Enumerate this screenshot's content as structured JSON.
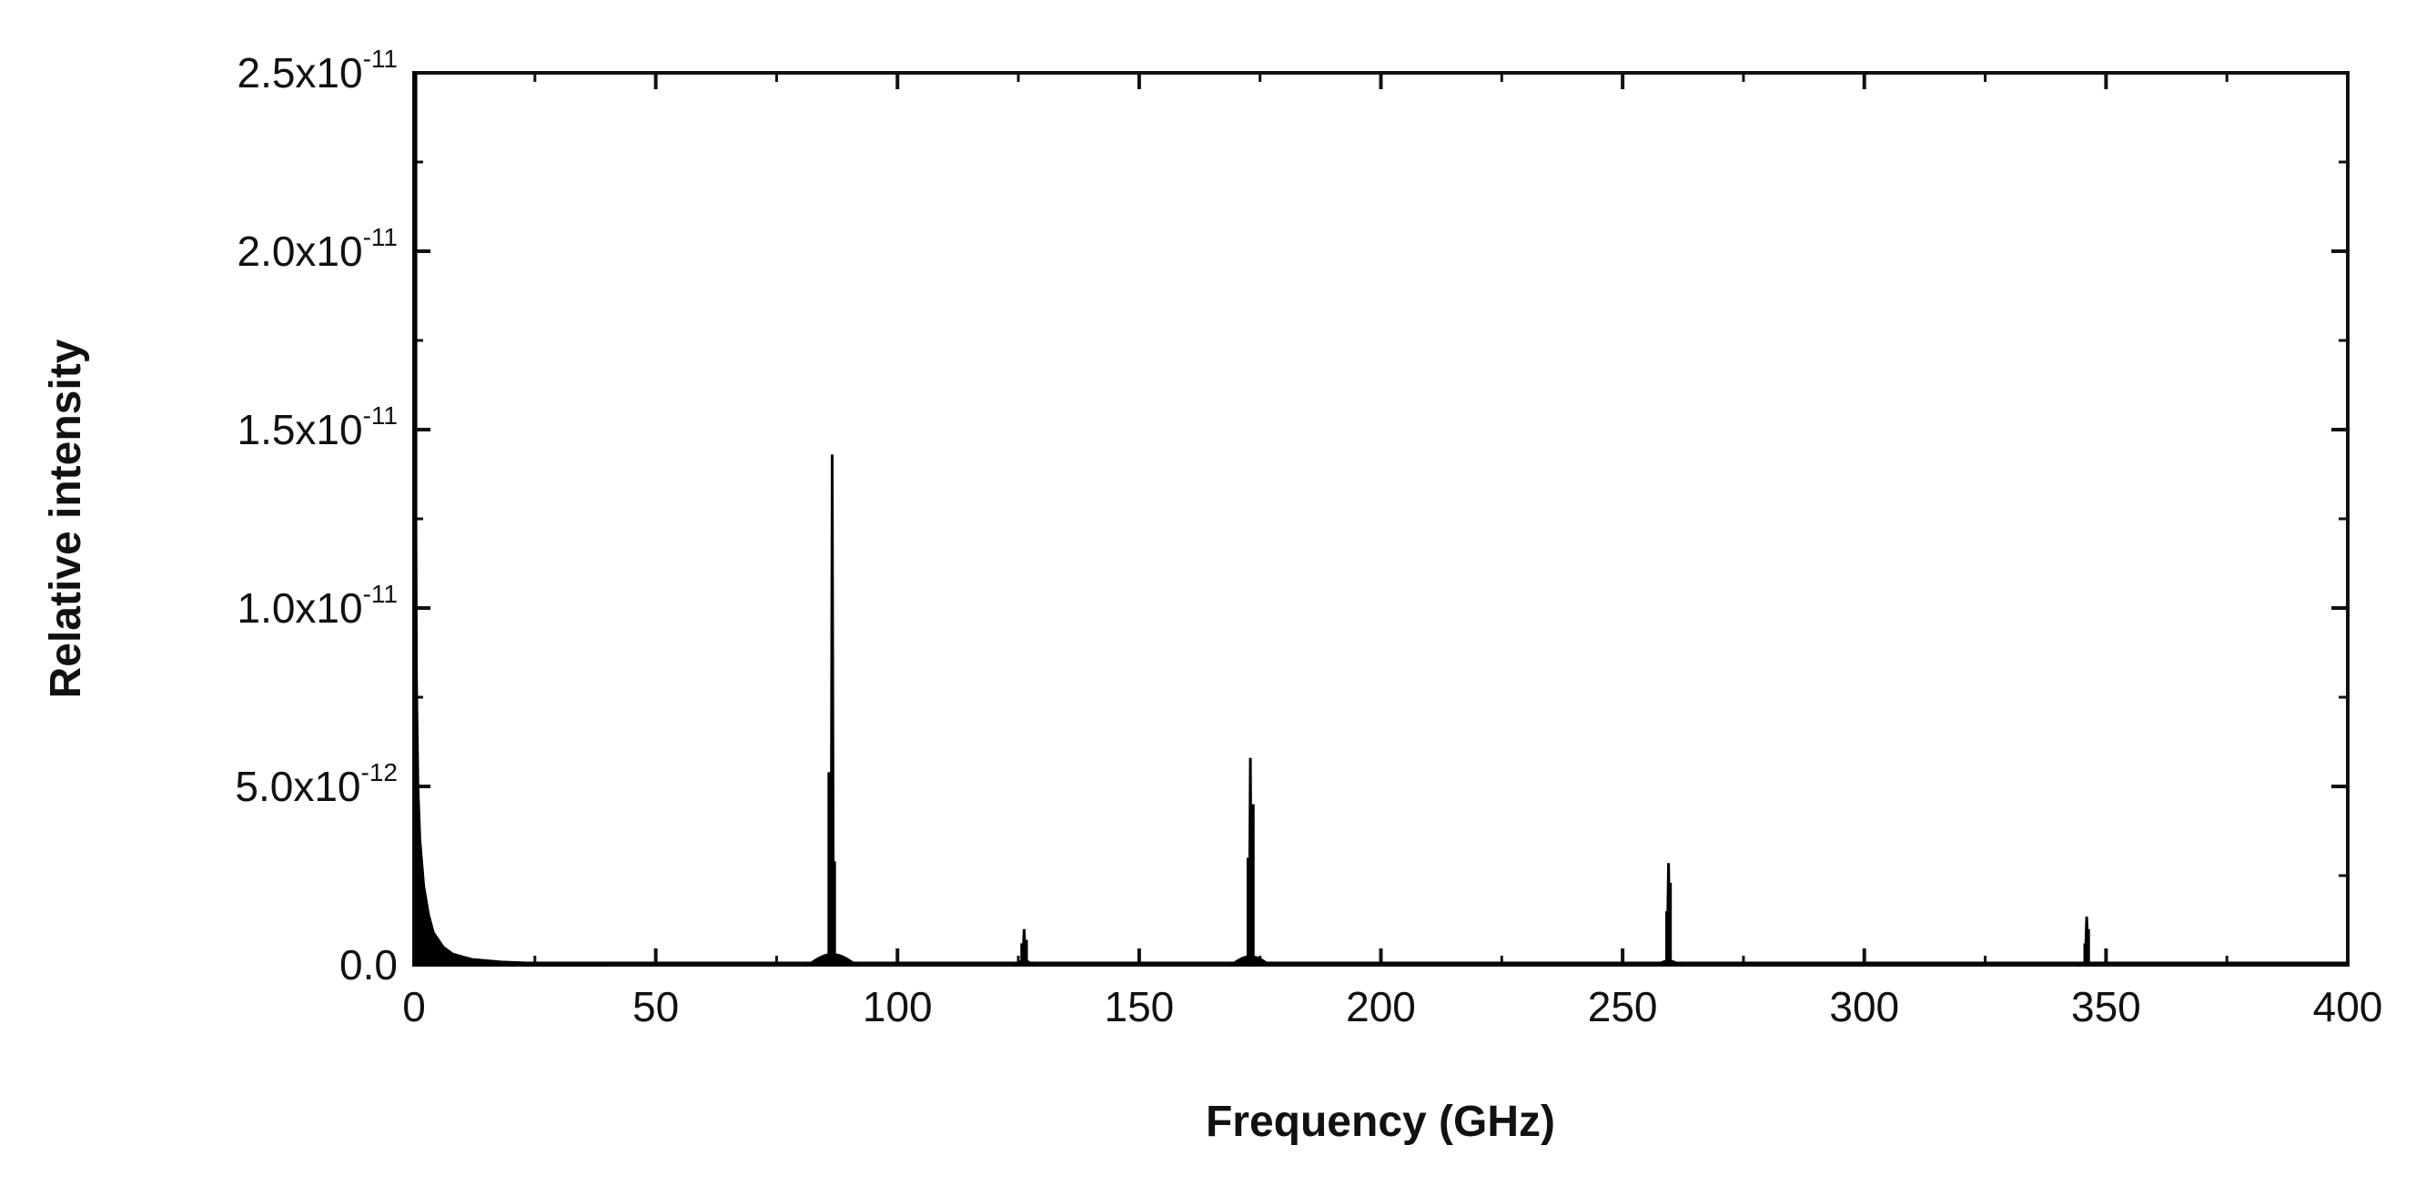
{
  "chart_data": {
    "type": "line",
    "title": "",
    "xlabel": "Frequency (GHz)",
    "ylabel": "Relative intensity",
    "xlim": [
      0,
      400
    ],
    "ylim": [
      0,
      2.5e-11
    ],
    "grid": false,
    "legend": "none",
    "line_color": "#000000",
    "x_ticks": [
      {
        "value": 0,
        "label": "0"
      },
      {
        "value": 50,
        "label": "50"
      },
      {
        "value": 100,
        "label": "100"
      },
      {
        "value": 150,
        "label": "150"
      },
      {
        "value": 200,
        "label": "200"
      },
      {
        "value": 250,
        "label": "250"
      },
      {
        "value": 300,
        "label": "300"
      },
      {
        "value": 350,
        "label": "350"
      },
      {
        "value": 400,
        "label": "400"
      }
    ],
    "y_ticks": [
      {
        "value": 0,
        "mantissa": "0.0",
        "exponent": ""
      },
      {
        "value": 5e-12,
        "mantissa": "5.0x10",
        "exponent": "-12"
      },
      {
        "value": 1e-11,
        "mantissa": "1.0x10",
        "exponent": "-11"
      },
      {
        "value": 1.5e-11,
        "mantissa": "1.5x10",
        "exponent": "-11"
      },
      {
        "value": 2e-11,
        "mantissa": "2.0x10",
        "exponent": "-11"
      },
      {
        "value": 2.5e-11,
        "mantissa": "2.5x10",
        "exponent": "-11"
      }
    ],
    "background": {
      "points": [
        [
          0.1,
          2.5e-11
        ],
        [
          0.3,
          1.5e-11
        ],
        [
          0.5,
          8e-12
        ],
        [
          0.8,
          5e-12
        ],
        [
          1.2,
          3.5e-12
        ],
        [
          2,
          2.2e-12
        ],
        [
          3,
          1.4e-12
        ],
        [
          4,
          9e-13
        ],
        [
          6,
          5e-13
        ],
        [
          8,
          3e-13
        ],
        [
          12,
          1.5e-13
        ],
        [
          18,
          8e-14
        ],
        [
          25,
          4e-14
        ],
        [
          30,
          2e-14
        ],
        [
          40,
          1e-14
        ]
      ]
    },
    "peaks": [
      {
        "name": "peak-86",
        "center": 86.5,
        "height": 1.43e-11,
        "width": 0.25,
        "base": 2.5e-13,
        "base_width": 2.5,
        "shoulders": [
          [
            85.9,
            5.4e-12
          ],
          [
            86.9,
            2.9e-12
          ],
          [
            86.0,
            3.2e-12
          ]
        ]
      },
      {
        "name": "peak-126",
        "center": 126.2,
        "height": 1e-12,
        "width": 0.3,
        "base": 1e-13,
        "base_width": 1.0,
        "shoulders": [
          [
            125.8,
            6e-13
          ],
          [
            126.6,
            7e-13
          ]
        ]
      },
      {
        "name": "peak-173",
        "center": 173.0,
        "height": 5.8e-12,
        "width": 0.25,
        "base": 2e-13,
        "base_width": 2.0,
        "shoulders": [
          [
            173.5,
            4.5e-12
          ],
          [
            172.6,
            3e-12
          ]
        ]
      },
      {
        "name": "peak-259",
        "center": 259.5,
        "height": 2.85e-12,
        "width": 0.3,
        "base": 1e-13,
        "base_width": 1.2,
        "shoulders": [
          [
            259.8,
            2.3e-12
          ],
          [
            259.2,
            1.5e-12
          ]
        ]
      },
      {
        "name": "peak-346",
        "center": 346.0,
        "height": 1.35e-12,
        "width": 0.3,
        "base": 5e-14,
        "base_width": 1.0,
        "shoulders": [
          [
            346.3,
            1e-12
          ],
          [
            345.7,
            6e-13
          ]
        ]
      }
    ]
  }
}
